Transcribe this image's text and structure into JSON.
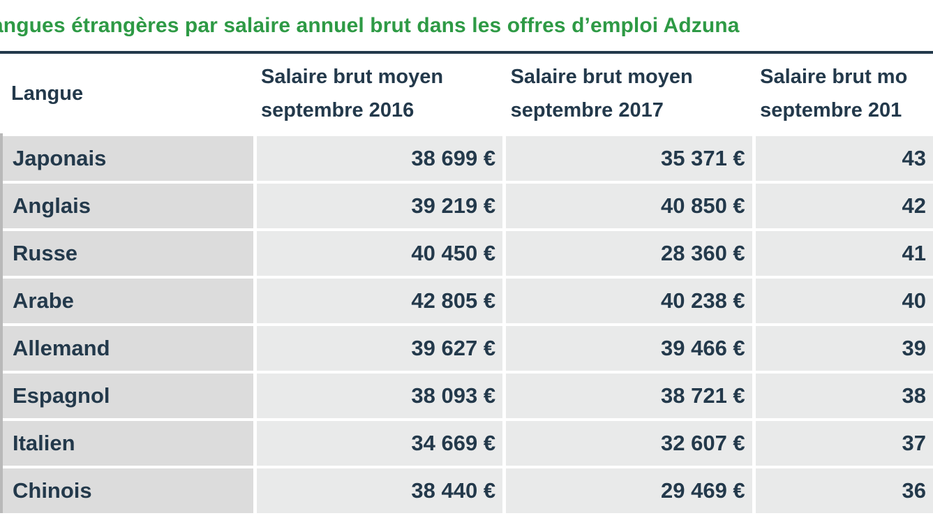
{
  "title": "angues étrangères par salaire annuel brut dans les offres d’emploi Adzuna",
  "table": {
    "headers": {
      "language": "Langue",
      "col2016_line1": "Salaire brut moyen",
      "col2016_line2": "septembre 2016",
      "col2017_line1": "Salaire brut moyen",
      "col2017_line2": "septembre 2017",
      "col2018_line1": "Salaire brut mo",
      "col2018_line2": "septembre 201"
    },
    "rows": [
      {
        "language": "Japonais",
        "s2016": "38 699 €",
        "s2017": "35 371 €",
        "s2018": "43"
      },
      {
        "language": "Anglais",
        "s2016": "39 219 €",
        "s2017": "40 850 €",
        "s2018": "42"
      },
      {
        "language": "Russe",
        "s2016": "40 450 €",
        "s2017": "28 360 €",
        "s2018": "41"
      },
      {
        "language": "Arabe",
        "s2016": "42 805 €",
        "s2017": "40 238 €",
        "s2018": "40"
      },
      {
        "language": "Allemand",
        "s2016": "39 627 €",
        "s2017": "39 466 €",
        "s2018": "39"
      },
      {
        "language": "Espagnol",
        "s2016": "38 093 €",
        "s2017": "38 721 €",
        "s2018": "38"
      },
      {
        "language": "Italien",
        "s2016": "34 669 €",
        "s2017": "32 607 €",
        "s2018": "37"
      },
      {
        "language": "Chinois",
        "s2016": "38 440 €",
        "s2017": "29 469 €",
        "s2018": "36"
      }
    ]
  },
  "colors": {
    "title": "#2e9a45",
    "text": "#23394b",
    "rule": "#23394b",
    "language_cell_bg": "#dcdcdc",
    "value_cell_bg": "#e9eaea"
  }
}
